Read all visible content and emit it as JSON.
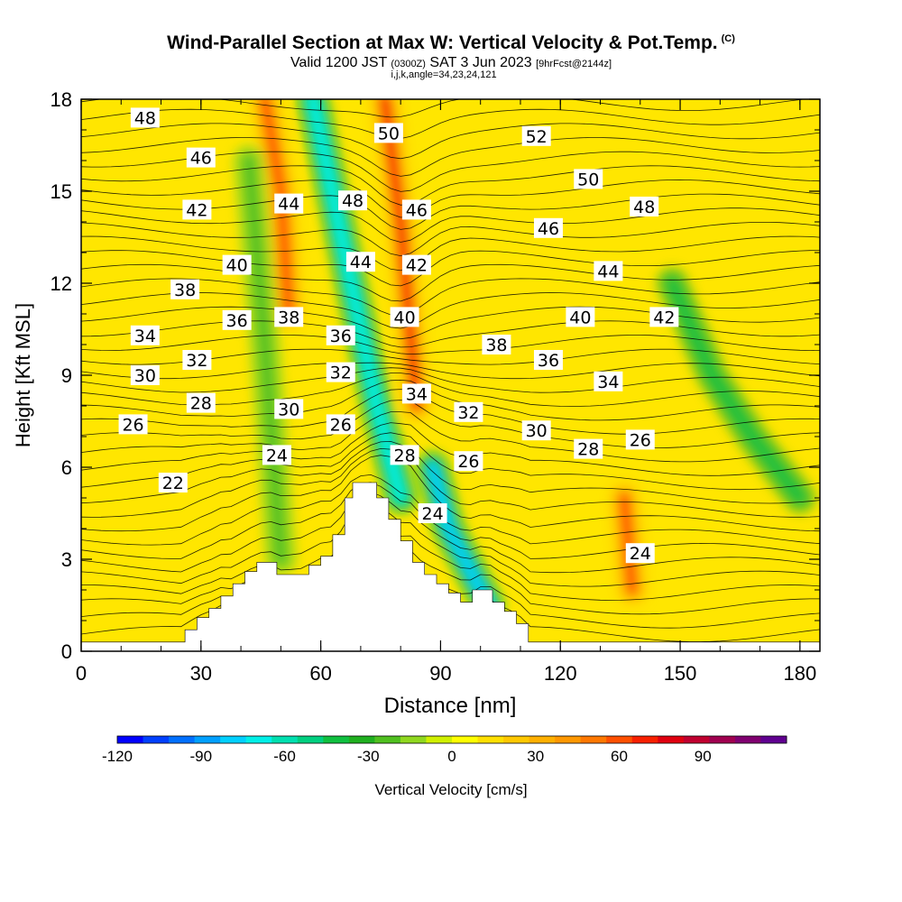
{
  "title": {
    "main": "Wind-Parallel Section at Max W: Vertical Velocity & Pot.Temp.",
    "copyright": "(C)",
    "valid_prefix": "Valid 1200 JST",
    "valid_utc": "(0300Z)",
    "valid_date": "SAT 3 Jun 2023",
    "forecast": "[9hrFcst@2144z]",
    "indices": "i,j,k,angle=34,23,24,121"
  },
  "chart_data": {
    "type": "heatmap",
    "xlabel": "Distance [nm]",
    "ylabel": "Height [Kft MSL]",
    "xlim": [
      0,
      185
    ],
    "ylim": [
      0,
      18
    ],
    "x_ticks": [
      0,
      30,
      60,
      90,
      120,
      150,
      180
    ],
    "y_ticks": [
      0,
      3,
      6,
      9,
      12,
      15,
      18
    ],
    "colorbar": {
      "label": "Vertical Velocity [cm/s]",
      "range": [
        -120,
        110
      ],
      "step": 10,
      "tick_values": [
        -120,
        -90,
        -60,
        -30,
        0,
        30,
        60,
        90
      ],
      "tick_labels": [
        "-120",
        "-90",
        "-60",
        "-30",
        "0",
        "30",
        "60",
        "90"
      ],
      "colors": [
        "#0000ff",
        "#0040ff",
        "#0070ff",
        "#00a0ff",
        "#00d0ff",
        "#00f0e8",
        "#00e0b0",
        "#00d080",
        "#10c040",
        "#20b020",
        "#50c020",
        "#90d820",
        "#d0f000",
        "#ffff00",
        "#ffe000",
        "#ffc800",
        "#ffb000",
        "#ff9800",
        "#ff7800",
        "#ff5000",
        "#f82000",
        "#e00010",
        "#c00030",
        "#a00050",
        "#800070",
        "#600090"
      ]
    },
    "terrain_profile": {
      "x": [
        0,
        26,
        26,
        29,
        29,
        32,
        32,
        35,
        35,
        38,
        38,
        41,
        41,
        44,
        44,
        49,
        49,
        57,
        57,
        60,
        60,
        63,
        63,
        66,
        66,
        68,
        68,
        74,
        74,
        77,
        77,
        80,
        80,
        83,
        83,
        86,
        86,
        89,
        89,
        92,
        92,
        95,
        95,
        98,
        98,
        103,
        103,
        106,
        106,
        109,
        109,
        112,
        112,
        120,
        120,
        185
      ],
      "y": [
        0.3,
        0.3,
        0.7,
        0.7,
        1.1,
        1.1,
        1.4,
        1.4,
        1.8,
        1.8,
        2.2,
        2.2,
        2.6,
        2.6,
        2.9,
        2.9,
        2.5,
        2.5,
        2.8,
        2.8,
        3.1,
        3.1,
        3.8,
        3.8,
        5.0,
        5.0,
        5.5,
        5.5,
        5.0,
        5.0,
        4.3,
        4.3,
        3.6,
        3.6,
        2.9,
        2.9,
        2.5,
        2.5,
        2.2,
        2.2,
        1.9,
        1.9,
        1.6,
        1.6,
        2.0,
        2.0,
        1.6,
        1.6,
        1.3,
        1.3,
        0.9,
        0.9,
        0.3,
        0.3,
        0.3,
        0.3
      ]
    },
    "w_features": [
      {
        "x": [
          46,
          50,
          51,
          52
        ],
        "y": [
          18,
          15,
          13,
          11
        ],
        "w": 70
      },
      {
        "x": [
          76,
          80,
          82,
          84
        ],
        "y": [
          18,
          14,
          11,
          8
        ],
        "w": 80
      },
      {
        "x": [
          136,
          137,
          138
        ],
        "y": [
          5.0,
          3.5,
          2.0
        ],
        "w": 70
      },
      {
        "x": [
          58,
          66,
          74,
          80
        ],
        "y": [
          18,
          13,
          8,
          5
        ],
        "w": -70
      },
      {
        "x": [
          88,
          92,
          98,
          102
        ],
        "y": [
          6,
          4,
          2.5,
          1.5
        ],
        "w": -80
      },
      {
        "x": [
          42,
          46,
          50
        ],
        "y": [
          16,
          10,
          3
        ],
        "w": -20
      },
      {
        "x": [
          148,
          158,
          168,
          180
        ],
        "y": [
          12,
          9,
          7,
          5
        ],
        "w": -35
      }
    ],
    "theta_labels": [
      {
        "text": "48",
        "x": 16,
        "y": 17.4
      },
      {
        "text": "46",
        "x": 30,
        "y": 16.1
      },
      {
        "text": "42",
        "x": 29,
        "y": 14.4
      },
      {
        "text": "44",
        "x": 52,
        "y": 14.6
      },
      {
        "text": "48",
        "x": 68,
        "y": 14.7
      },
      {
        "text": "50",
        "x": 77,
        "y": 16.9
      },
      {
        "text": "46",
        "x": 84,
        "y": 14.4
      },
      {
        "text": "52",
        "x": 114,
        "y": 16.8
      },
      {
        "text": "50",
        "x": 127,
        "y": 15.4
      },
      {
        "text": "46",
        "x": 117,
        "y": 13.8
      },
      {
        "text": "48",
        "x": 141,
        "y": 14.5
      },
      {
        "text": "40",
        "x": 39,
        "y": 12.6
      },
      {
        "text": "38",
        "x": 26,
        "y": 11.8
      },
      {
        "text": "44",
        "x": 70,
        "y": 12.7
      },
      {
        "text": "42",
        "x": 84,
        "y": 12.6
      },
      {
        "text": "44",
        "x": 132,
        "y": 12.4
      },
      {
        "text": "36",
        "x": 39,
        "y": 10.8
      },
      {
        "text": "38",
        "x": 52,
        "y": 10.9
      },
      {
        "text": "34",
        "x": 16,
        "y": 10.3
      },
      {
        "text": "36",
        "x": 65,
        "y": 10.3
      },
      {
        "text": "40",
        "x": 81,
        "y": 10.9
      },
      {
        "text": "40",
        "x": 125,
        "y": 10.9
      },
      {
        "text": "42",
        "x": 146,
        "y": 10.9
      },
      {
        "text": "38",
        "x": 104,
        "y": 10.0
      },
      {
        "text": "36",
        "x": 117,
        "y": 9.5
      },
      {
        "text": "32",
        "x": 29,
        "y": 9.5
      },
      {
        "text": "32",
        "x": 65,
        "y": 9.1
      },
      {
        "text": "30",
        "x": 16,
        "y": 9.0
      },
      {
        "text": "34",
        "x": 132,
        "y": 8.8
      },
      {
        "text": "34",
        "x": 84,
        "y": 8.4
      },
      {
        "text": "28",
        "x": 30,
        "y": 8.1
      },
      {
        "text": "30",
        "x": 52,
        "y": 7.9
      },
      {
        "text": "32",
        "x": 97,
        "y": 7.8
      },
      {
        "text": "26",
        "x": 13,
        "y": 7.4
      },
      {
        "text": "26",
        "x": 65,
        "y": 7.4
      },
      {
        "text": "30",
        "x": 114,
        "y": 7.2
      },
      {
        "text": "26",
        "x": 140,
        "y": 6.9
      },
      {
        "text": "28",
        "x": 127,
        "y": 6.6
      },
      {
        "text": "24",
        "x": 49,
        "y": 6.4
      },
      {
        "text": "28",
        "x": 81,
        "y": 6.4
      },
      {
        "text": "26",
        "x": 97,
        "y": 6.2
      },
      {
        "text": "22",
        "x": 23,
        "y": 5.5
      },
      {
        "text": "24",
        "x": 88,
        "y": 4.5
      },
      {
        "text": "24",
        "x": 140,
        "y": 3.2
      }
    ]
  }
}
